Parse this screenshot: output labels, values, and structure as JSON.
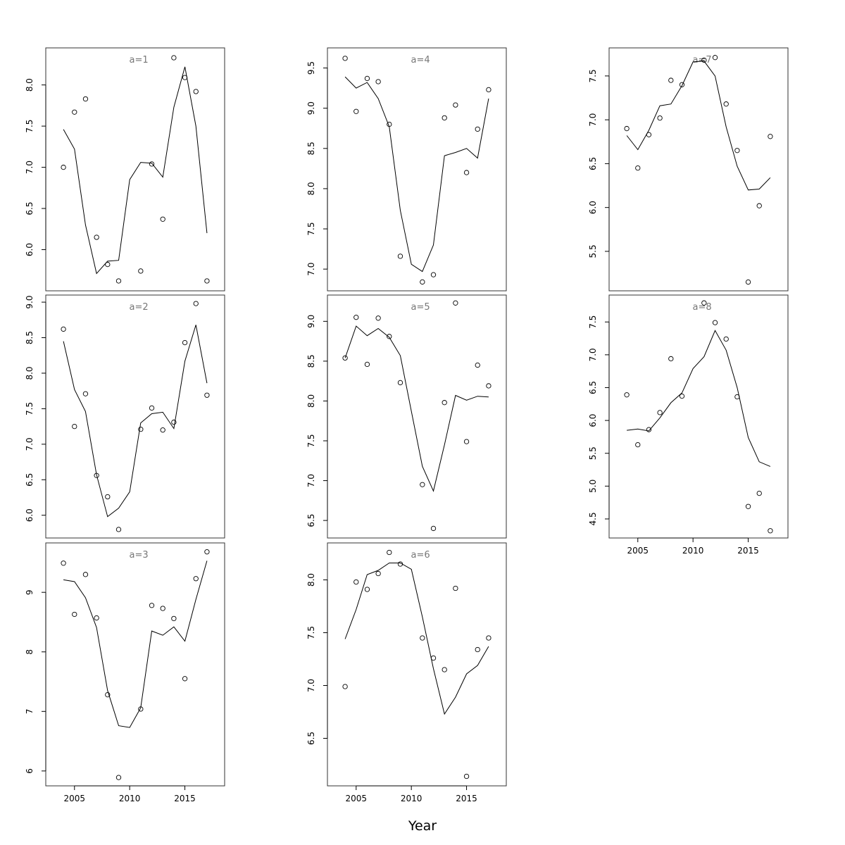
{
  "figure": {
    "xlabel": "Year"
  },
  "chart_data": [
    {
      "type": "line",
      "title": "a=1",
      "row": 0,
      "col": 0,
      "show_x_axis": false,
      "x": [
        2004,
        2005,
        2006,
        2007,
        2008,
        2009,
        2010,
        2011,
        2012,
        2013,
        2014,
        2015,
        2016,
        2017
      ],
      "points": [
        7.0,
        7.67,
        7.83,
        6.15,
        5.82,
        5.62,
        null,
        5.74,
        7.04,
        6.37,
        8.33,
        8.09,
        7.92,
        5.62
      ],
      "fitted": [
        7.46,
        7.22,
        6.3,
        5.71,
        5.86,
        5.87,
        6.85,
        7.06,
        7.05,
        6.88,
        7.73,
        8.22,
        7.5,
        6.2
      ],
      "ylim": [
        5.5,
        8.45
      ],
      "yticks": [
        6.0,
        6.5,
        7.0,
        7.5,
        8.0
      ],
      "ytick_labels": [
        "6.0",
        "6.5",
        "7.0",
        "7.5",
        "8.0"
      ]
    },
    {
      "type": "line",
      "title": "a=2",
      "row": 1,
      "col": 0,
      "show_x_axis": false,
      "x": [
        2004,
        2005,
        2006,
        2007,
        2008,
        2009,
        2010,
        2011,
        2012,
        2013,
        2014,
        2015,
        2016,
        2017
      ],
      "points": [
        8.62,
        7.25,
        7.71,
        6.56,
        6.26,
        5.8,
        null,
        7.21,
        7.51,
        7.2,
        7.31,
        8.43,
        8.98,
        7.69
      ],
      "fitted": [
        8.45,
        7.77,
        7.46,
        6.57,
        5.98,
        6.1,
        6.33,
        7.3,
        7.43,
        7.45,
        7.22,
        8.17,
        8.68,
        7.86
      ],
      "ylim": [
        5.68,
        9.1
      ],
      "yticks": [
        6.0,
        6.5,
        7.0,
        7.5,
        8.0,
        8.5,
        9.0
      ],
      "ytick_labels": [
        "6.0",
        "6.5",
        "7.0",
        "7.5",
        "8.0",
        "8.5",
        "9.0"
      ]
    },
    {
      "type": "line",
      "title": "a=3",
      "row": 2,
      "col": 0,
      "show_x_axis": true,
      "x": [
        2004,
        2005,
        2006,
        2007,
        2008,
        2009,
        2010,
        2011,
        2012,
        2013,
        2014,
        2015,
        2016,
        2017
      ],
      "points": [
        9.49,
        8.63,
        9.3,
        8.57,
        7.28,
        5.89,
        null,
        7.04,
        8.78,
        8.73,
        8.56,
        7.55,
        9.23,
        9.68
      ],
      "fitted": [
        9.21,
        9.18,
        8.91,
        8.41,
        7.35,
        6.76,
        6.73,
        7.06,
        8.35,
        8.28,
        8.42,
        8.18,
        8.88,
        9.53
      ],
      "ylim": [
        5.75,
        9.83
      ],
      "yticks": [
        6,
        7,
        8,
        9
      ],
      "ytick_labels": [
        "6",
        "7",
        "8",
        "9"
      ],
      "xticks": [
        2005,
        2010,
        2015
      ],
      "xtick_labels": [
        "2005",
        "2010",
        "2015"
      ]
    },
    {
      "type": "line",
      "title": "a=4",
      "row": 0,
      "col": 1,
      "show_x_axis": false,
      "x": [
        2004,
        2005,
        2006,
        2007,
        2008,
        2009,
        2010,
        2011,
        2012,
        2013,
        2014,
        2015,
        2016,
        2017
      ],
      "points": [
        9.62,
        8.96,
        9.37,
        9.33,
        8.8,
        7.16,
        null,
        6.84,
        6.93,
        8.88,
        9.04,
        8.2,
        8.74,
        9.23
      ],
      "fitted": [
        9.39,
        9.25,
        9.32,
        9.12,
        8.77,
        7.73,
        7.06,
        6.97,
        7.3,
        8.41,
        8.45,
        8.5,
        8.38,
        9.12
      ],
      "ylim": [
        6.73,
        9.75
      ],
      "yticks": [
        7.0,
        7.5,
        8.0,
        8.5,
        9.0,
        9.5
      ],
      "ytick_labels": [
        "7.0",
        "7.5",
        "8.0",
        "8.5",
        "9.0",
        "9.5"
      ]
    },
    {
      "type": "line",
      "title": "a=5",
      "row": 1,
      "col": 1,
      "show_x_axis": false,
      "x": [
        2004,
        2005,
        2006,
        2007,
        2008,
        2009,
        2010,
        2011,
        2012,
        2013,
        2014,
        2015,
        2016,
        2017
      ],
      "points": [
        8.54,
        9.05,
        8.46,
        9.04,
        8.81,
        8.23,
        null,
        6.95,
        6.4,
        7.98,
        9.23,
        7.49,
        8.45,
        8.19
      ],
      "fitted": [
        8.54,
        8.94,
        8.82,
        8.91,
        8.8,
        8.57,
        7.87,
        7.18,
        6.87,
        7.45,
        8.07,
        8.01,
        8.06,
        8.05
      ],
      "ylim": [
        6.28,
        9.33
      ],
      "yticks": [
        6.5,
        7.0,
        7.5,
        8.0,
        8.5,
        9.0
      ],
      "ytick_labels": [
        "6.5",
        "7.0",
        "7.5",
        "8.0",
        "8.5",
        "9.0"
      ]
    },
    {
      "type": "line",
      "title": "a=6",
      "row": 2,
      "col": 1,
      "show_x_axis": true,
      "x": [
        2004,
        2005,
        2006,
        2007,
        2008,
        2009,
        2010,
        2011,
        2012,
        2013,
        2014,
        2015,
        2016,
        2017
      ],
      "points": [
        6.99,
        7.98,
        7.91,
        8.06,
        8.26,
        8.15,
        null,
        7.45,
        7.26,
        7.15,
        7.92,
        6.14,
        7.34,
        7.45
      ],
      "fitted": [
        7.44,
        7.72,
        8.05,
        8.09,
        8.16,
        8.16,
        8.1,
        7.65,
        7.16,
        6.73,
        6.89,
        7.11,
        7.19,
        7.37
      ],
      "ylim": [
        6.05,
        8.35
      ],
      "yticks": [
        6.5,
        7.0,
        7.5,
        8.0
      ],
      "ytick_labels": [
        "6.5",
        "7.0",
        "7.5",
        "8.0"
      ],
      "xticks": [
        2005,
        2010,
        2015
      ],
      "xtick_labels": [
        "2005",
        "2010",
        "2015"
      ]
    },
    {
      "type": "line",
      "title": "a=7",
      "row": 0,
      "col": 2,
      "show_x_axis": false,
      "x": [
        2004,
        2005,
        2006,
        2007,
        2008,
        2009,
        2010,
        2011,
        2012,
        2013,
        2014,
        2015,
        2016,
        2017
      ],
      "points": [
        6.9,
        6.45,
        6.83,
        7.02,
        7.45,
        7.4,
        null,
        7.68,
        7.71,
        7.18,
        6.65,
        5.15,
        6.02,
        6.81
      ],
      "fitted": [
        6.82,
        6.66,
        6.88,
        7.16,
        7.18,
        7.39,
        7.66,
        7.67,
        7.5,
        6.92,
        6.47,
        6.2,
        6.21,
        6.34
      ],
      "ylim": [
        5.05,
        7.82
      ],
      "yticks": [
        5.5,
        6.0,
        6.5,
        7.0,
        7.5
      ],
      "ytick_labels": [
        "5.5",
        "6.0",
        "6.5",
        "7.0",
        "7.5"
      ]
    },
    {
      "type": "line",
      "title": "a=8",
      "row": 1,
      "col": 2,
      "show_x_axis": true,
      "x": [
        2004,
        2005,
        2006,
        2007,
        2008,
        2009,
        2010,
        2011,
        2012,
        2013,
        2014,
        2015,
        2016,
        2017
      ],
      "points": [
        6.39,
        5.63,
        5.86,
        6.12,
        6.94,
        6.37,
        null,
        7.79,
        7.49,
        7.24,
        6.36,
        4.69,
        4.89,
        4.32
      ],
      "fitted": [
        5.85,
        5.87,
        5.84,
        6.04,
        6.27,
        6.42,
        6.79,
        6.97,
        7.37,
        7.07,
        6.5,
        5.74,
        5.37,
        5.3
      ],
      "ylim": [
        4.21,
        7.91
      ],
      "yticks": [
        4.5,
        5.0,
        5.5,
        6.0,
        6.5,
        7.0,
        7.5
      ],
      "ytick_labels": [
        "4.5",
        "5.0",
        "5.5",
        "6.0",
        "6.5",
        "7.0",
        "7.5"
      ],
      "xticks": [
        2005,
        2010,
        2015
      ],
      "xtick_labels": [
        "2005",
        "2010",
        "2015"
      ]
    }
  ]
}
